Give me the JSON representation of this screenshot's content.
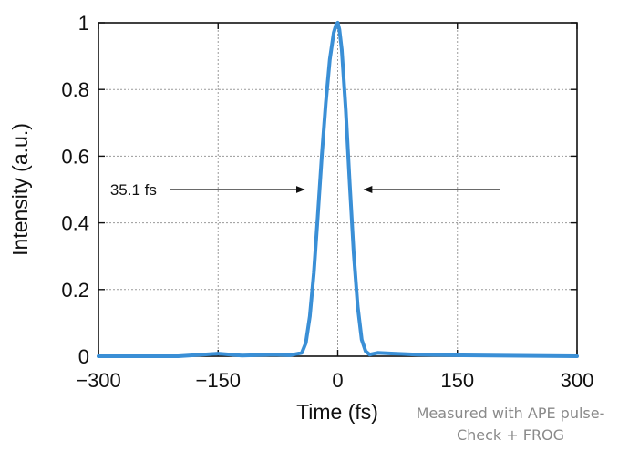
{
  "chart_data": {
    "type": "line",
    "xlabel": "Time (fs)",
    "ylabel": "Intensity (a.u.)",
    "xlim": [
      -300,
      300
    ],
    "ylim": [
      0,
      1
    ],
    "x_ticks": [
      "−300",
      "−150",
      "0",
      "150",
      "300"
    ],
    "x_tick_values": [
      -300,
      -150,
      0,
      150,
      300
    ],
    "y_ticks": [
      "0",
      "0.2",
      "0.4",
      "0.6",
      "0.8",
      "1"
    ],
    "y_tick_values": [
      0,
      0.2,
      0.4,
      0.6,
      0.8,
      1
    ],
    "grid": true,
    "series": [
      {
        "color": "#3a8fd6",
        "x": [
          -300,
          -200,
          -150,
          -120,
          -80,
          -60,
          -45,
          -40,
          -35,
          -30,
          -25,
          -20,
          -15,
          -10,
          -5,
          -2,
          0,
          2,
          5,
          10,
          15,
          20,
          25,
          30,
          35,
          40,
          50,
          70,
          100,
          150,
          300
        ],
        "y": [
          0.0,
          0.0,
          0.008,
          0.002,
          0.005,
          0.003,
          0.01,
          0.04,
          0.12,
          0.25,
          0.42,
          0.6,
          0.76,
          0.89,
          0.97,
          0.995,
          1.0,
          0.98,
          0.92,
          0.74,
          0.52,
          0.31,
          0.15,
          0.05,
          0.015,
          0.005,
          0.01,
          0.008,
          0.005,
          0.003,
          0.0
        ]
      }
    ],
    "annotations": [
      {
        "text": "35.1 fs",
        "value": 35.1,
        "unit": "fs"
      }
    ]
  },
  "caption": {
    "line1": "Measured with APE pulse-",
    "line2": "Check + FROG"
  }
}
